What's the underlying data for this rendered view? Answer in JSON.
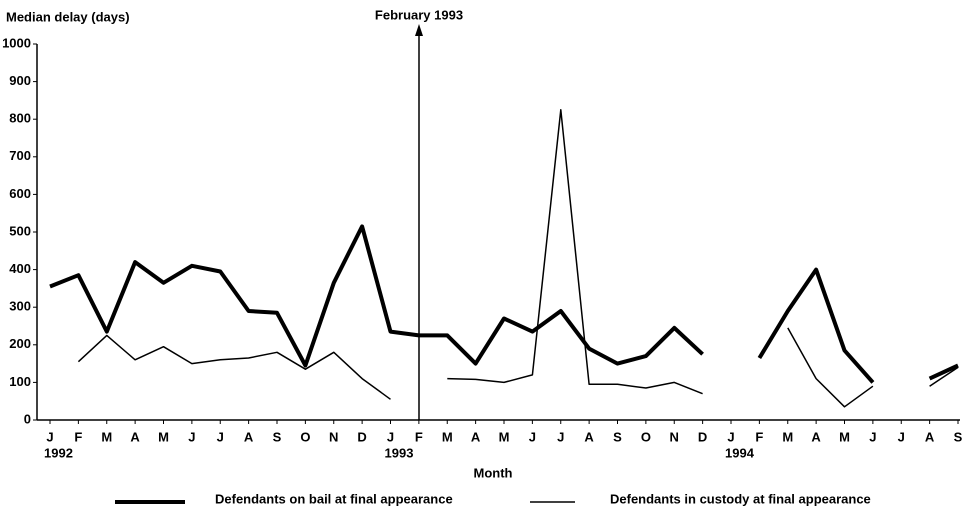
{
  "chart_data": {
    "type": "line",
    "y_label": "Median delay (days)",
    "x_label": "Month",
    "annotation": "February 1993",
    "categories": [
      "J",
      "F",
      "M",
      "A",
      "M",
      "J",
      "J",
      "A",
      "S",
      "O",
      "N",
      "D",
      "J",
      "F",
      "M",
      "A",
      "M",
      "J",
      "J",
      "A",
      "S",
      "O",
      "N",
      "D",
      "J",
      "F",
      "M",
      "A",
      "M",
      "J",
      "J",
      "A",
      "S"
    ],
    "category_years": [
      "1992",
      null,
      null,
      null,
      null,
      null,
      null,
      null,
      null,
      null,
      null,
      null,
      "1993",
      null,
      null,
      null,
      null,
      null,
      null,
      null,
      null,
      null,
      null,
      null,
      "1994",
      null,
      null,
      null,
      null,
      null,
      null,
      null,
      null
    ],
    "series": [
      {
        "name": "Defendants on bail at final appearance",
        "color": "#000000",
        "width": 4,
        "values": [
          355,
          385,
          235,
          420,
          365,
          410,
          395,
          290,
          285,
          145,
          365,
          515,
          235,
          225,
          225,
          150,
          270,
          235,
          290,
          190,
          150,
          170,
          245,
          175,
          null,
          165,
          290,
          400,
          185,
          100,
          null,
          110,
          145
        ]
      },
      {
        "name": "Defendants in custody at final appearance",
        "color": "#000000",
        "width": 1.5,
        "values": [
          null,
          155,
          225,
          160,
          195,
          150,
          160,
          165,
          180,
          135,
          180,
          110,
          55,
          null,
          110,
          108,
          100,
          120,
          825,
          95,
          95,
          85,
          100,
          70,
          null,
          null,
          245,
          110,
          35,
          90,
          null,
          90,
          140
        ]
      }
    ],
    "ylim": [
      0,
      1000
    ],
    "yticks": [
      0,
      100,
      200,
      300,
      400,
      500,
      600,
      700,
      800,
      900,
      1000
    ],
    "grid": false
  }
}
